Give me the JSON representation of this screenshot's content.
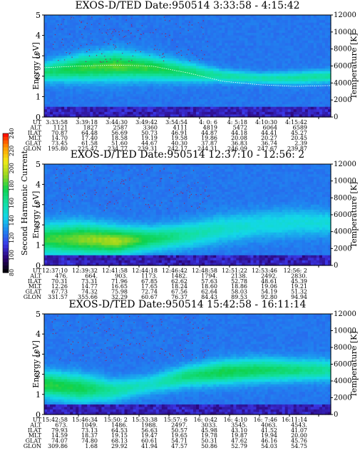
{
  "chart_data": {
    "colorbar": {
      "label": "Second Harmonic Current",
      "ticks": [
        "240",
        "220",
        "200",
        "180",
        "160",
        "140",
        "120",
        "100",
        "80"
      ],
      "range": [
        80,
        240
      ],
      "colors": [
        "#000000",
        "#2a006e",
        "#3a37e6",
        "#1f86f0",
        "#13d7e8",
        "#13e0a0",
        "#0fd24d",
        "#9bd71d",
        "#f2ea16",
        "#ff9600",
        "#ff0000"
      ]
    },
    "panels": [
      {
        "type": "heatmap",
        "title": "EXOS-D/TED   Date:950514   3:33:58 - 4:15:42",
        "ylabel": "Energy [eV]",
        "ylabel_right": "Temperature [K]",
        "ylim": [
          0,
          5
        ],
        "yticks": [
          "0",
          "1",
          "2",
          "3",
          "4",
          "5"
        ],
        "ylim_right": [
          0,
          12000
        ],
        "yticks_right": [
          "0",
          "2000",
          "4000",
          "6000",
          "8000",
          "10000",
          "12000"
        ],
        "band": {
          "center": [
            2.2,
            2.4,
            2.5,
            2.4,
            2.2,
            2.0,
            1.9,
            1.9,
            2.0
          ],
          "width": [
            0.9,
            1.2,
            1.3,
            1.1,
            0.9,
            0.6,
            0.5,
            0.6,
            0.6
          ],
          "level": [
            0.55,
            0.62,
            0.65,
            0.62,
            0.55,
            0.5,
            0.48,
            0.5,
            0.5
          ]
        },
        "temperature_line": [
          5800,
          6000,
          6100,
          6000,
          5200,
          4200,
          3800,
          3600,
          3700
        ],
        "table": [
          {
            "label": "UT",
            "values": [
              "3:33:58",
              "3:39:18",
              "3:44:30",
              "3:49:42",
              "3:54:54",
              "4: 0: 6",
              "4: 5:18",
              "4:10:30",
              "4:15:42"
            ]
          },
          {
            "label": "ALT",
            "values": [
              "1121",
              "1827",
              "2587",
              "3360",
              "4111",
              "4819",
              "5472",
              "6064",
              "6589"
            ]
          },
          {
            "label": "ILAT",
            "values": [
              "70.87",
              "64.48",
              "56.69",
              "50.73",
              "46.91",
              "44.87",
              "44.18",
              "44.41",
              "45.27"
            ]
          },
          {
            "label": "MLT",
            "values": [
              "14.70",
              "17.40",
              "18.58",
              "19.19",
              "19.58",
              "19.86",
              "20.08",
              "20.27",
              "20.45"
            ]
          },
          {
            "label": "GLAT",
            "values": [
              "73.45",
              "61.58",
              "51.60",
              "44.67",
              "40.30",
              "37.87",
              "36.83",
              "36.74",
              "2.39"
            ]
          },
          {
            "label": "GLON",
            "values": [
              "195.80",
              "225.47",
              "234.77",
              "239.31",
              "242.17",
              "244.31",
              "246.09",
              "247.67",
              "239.87"
            ]
          }
        ]
      },
      {
        "type": "heatmap",
        "title": "EXOS-D/TED   Date:950514   12:37:10 - 12:56: 2",
        "ylabel": "Energy [eV]",
        "ylabel_right": "Temperature [K]",
        "ylim": [
          0,
          5
        ],
        "yticks": [
          "0",
          "1",
          "2",
          "3",
          "4",
          "5"
        ],
        "ylim_right": [
          0,
          12000
        ],
        "yticks_right": [
          "0",
          "2000",
          "4000",
          "6000",
          "8000",
          "10000",
          "12000"
        ],
        "band": {
          "center": [
            1.3,
            1.3,
            1.2,
            1.3,
            1.5,
            1.8,
            2.0,
            2.1,
            2.1
          ],
          "width": [
            1.4,
            1.5,
            1.3,
            1.1,
            1.2,
            1.3,
            1.3,
            1.3,
            1.2
          ],
          "level": [
            0.62,
            0.68,
            0.72,
            0.58,
            0.5,
            0.45,
            0.42,
            0.42,
            0.42
          ]
        },
        "temperature_line": [],
        "table": [
          {
            "label": "UT",
            "values": [
              "12:37:10",
              "12:39:32",
              "12:41:58",
              "12:44:18",
              "12:46:42",
              "12:48:58",
              "12:51:22",
              "12:53:46",
              "12:56: 2"
            ]
          },
          {
            "label": "ALT",
            "values": [
              "476.",
              "664.",
              "903.",
              "1173.",
              "1482.",
              "1794.",
              "2138.",
              "2492.",
              "2830."
            ]
          },
          {
            "label": "ILAT",
            "values": [
              "70.31",
              "73.31",
              "71.96",
              "67.85",
              "62.62",
              "57.63",
              "52.78",
              "48.61",
              "45.39"
            ]
          },
          {
            "label": "MLT",
            "values": [
              "12.26",
              "14.77",
              "16.65",
              "17.65",
              "18.24",
              "18.60",
              "18.86",
              "19.06",
              "19.21"
            ]
          },
          {
            "label": "GLAT",
            "values": [
              "67.73",
              "74.32",
              "75.98",
              "72.74",
              "67.56",
              "62.64",
              "58.03",
              "54.19",
              "51.32"
            ]
          },
          {
            "label": "GLON",
            "values": [
              "331.57",
              "355.66",
              "32.29",
              "60.67",
              "76.37",
              "84.43",
              "89.53",
              "92.80",
              "94.94"
            ]
          }
        ]
      },
      {
        "type": "heatmap",
        "title": "EXOS-D/TED   Date:950514   15:42:58 - 16:11:14",
        "ylabel": "Energy [eV]",
        "ylabel_right": "Temperature [K]",
        "ylim": [
          0,
          5
        ],
        "yticks": [
          "0",
          "1",
          "2",
          "3",
          "4",
          "5"
        ],
        "ylim_right": [
          0,
          12000
        ],
        "yticks_right": [
          "0",
          "2000",
          "4000",
          "6000",
          "8000",
          "10000",
          "12000"
        ],
        "band": {
          "center": [
            1.5,
            1.3,
            1.2,
            1.5,
            1.9,
            2.1,
            2.2,
            2.2,
            2.2
          ],
          "width": [
            1.2,
            1.3,
            1.0,
            0.9,
            1.0,
            1.1,
            1.1,
            1.0,
            1.0
          ],
          "level": [
            0.62,
            0.6,
            0.5,
            0.45,
            0.55,
            0.6,
            0.58,
            0.55,
            0.5
          ]
        },
        "temperature_line": [],
        "table": [
          {
            "label": "UT",
            "values": [
              "15:42:58",
              "15:46:34",
              "15:50: 2",
              "15:53:38",
              "15:57: 6",
              "16: 0:42",
              "16: 4:10",
              "16: 7:46",
              "16:11:14"
            ]
          },
          {
            "label": "ALT",
            "values": [
              "673.",
              "1049.",
              "1486.",
              "1988.",
              "2497.",
              "3033.",
              "3545.",
              "4063.",
              "4543."
            ]
          },
          {
            "label": "ILAT",
            "values": [
              "79.93",
              "73.13",
              "64.53",
              "56.63",
              "50.57",
              "45.98",
              "43.10",
              "41.52",
              "41.07"
            ]
          },
          {
            "label": "MLT",
            "values": [
              "14.59",
              "18.37",
              "19.15",
              "19.47",
              "19.65",
              "19.78",
              "19.87",
              "19.94",
              "20.00"
            ]
          },
          {
            "label": "GLAT",
            "values": [
              "74.07",
              "74.80",
              "68.13",
              "60.61",
              "54.71",
              "50.31",
              "47.62",
              "46.16",
              "45.76"
            ]
          },
          {
            "label": "GLON",
            "values": [
              "309.86",
              "1.68",
              "29.92",
              "41.94",
              "47.57",
              "50.86",
              "52.79",
              "54.03",
              "54.75"
            ]
          }
        ]
      }
    ]
  }
}
